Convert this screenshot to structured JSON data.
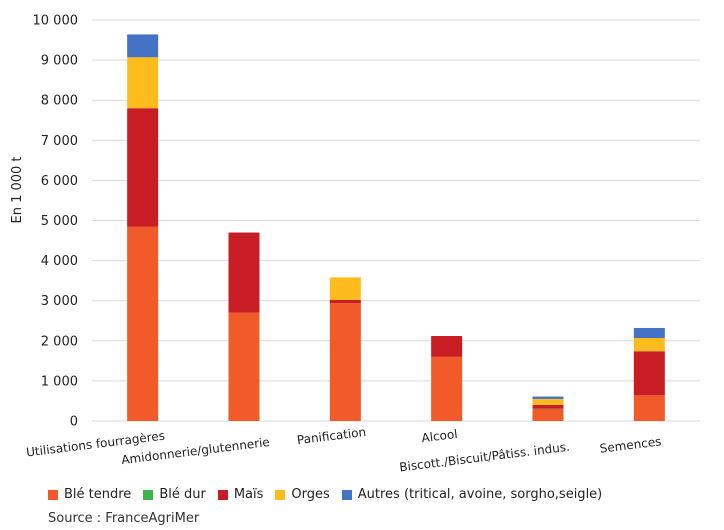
{
  "chart_data": {
    "type": "bar",
    "stacked": true,
    "ylabel": "En 1 000 t",
    "ylim": [
      0,
      10000
    ],
    "yticks": [
      0,
      1000,
      2000,
      3000,
      4000,
      5000,
      6000,
      7000,
      8000,
      9000,
      10000
    ],
    "ytick_labels": [
      "0",
      "1 000",
      "2 000",
      "3 000",
      "4 000",
      "5 000",
      "6 000",
      "7 000",
      "8 000",
      "9 000",
      "10 000"
    ],
    "grid": true,
    "legend_position": "bottom",
    "categories": [
      "Utilisations fourragères",
      "Amidonnerie/glutennerie",
      "Panification",
      "Alcool",
      "Biscott./Biscuit/Pâtiss. indus.",
      "Semences"
    ],
    "series": [
      {
        "name": "Blé tendre",
        "color": "#f15a29",
        "values": [
          4850,
          2700,
          2940,
          1600,
          300,
          640
        ]
      },
      {
        "name": "Blé dur",
        "color": "#3cb44b",
        "values": [
          0,
          0,
          0,
          0,
          10,
          0
        ]
      },
      {
        "name": "Maïs",
        "color": "#c81d25",
        "values": [
          2950,
          2000,
          80,
          520,
          90,
          1100
        ]
      },
      {
        "name": "Orges",
        "color": "#fdbb1d",
        "values": [
          1270,
          0,
          560,
          0,
          150,
          330
        ]
      },
      {
        "name": "Autres (tritical, avoine, sorgho,seigle)",
        "color": "#4472c4",
        "values": [
          570,
          0,
          0,
          0,
          60,
          250
        ]
      }
    ],
    "source": "Source : FranceAgriMer"
  }
}
